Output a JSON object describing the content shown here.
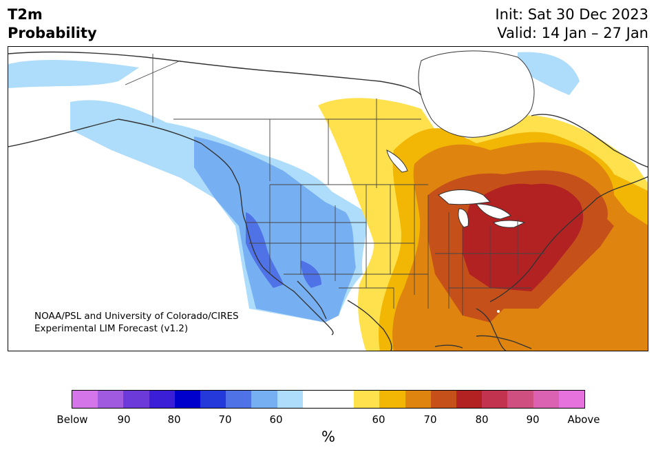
{
  "title": {
    "left_line1": "T2m",
    "left_line2": "Probability",
    "right_line1": "Init: Sat 30 Dec 2023",
    "right_line2": "Valid: 14 Jan – 27 Jan"
  },
  "credit": {
    "line1": "NOAA/PSL and University of Colorado/CIRES",
    "line2": "Experimental LIM Forecast (v1.2)"
  },
  "colorbar": {
    "unit": "%",
    "colors": [
      "#d575ea",
      "#9f5ae0",
      "#6b3ad9",
      "#3a1fd6",
      "#0000cc",
      "#2538d9",
      "#4f72e6",
      "#77b0f2",
      "#aedcfb",
      "#ffffff",
      "#ffffff",
      "#ffe14d",
      "#f2b705",
      "#df850f",
      "#c6501a",
      "#b22222",
      "#c23350",
      "#cf4f80",
      "#db62b3",
      "#e673dd"
    ],
    "tick_labels": [
      "Below",
      "90",
      "80",
      "70",
      "60",
      "60",
      "70",
      "80",
      "90",
      "Above"
    ]
  },
  "map_colors": {
    "land": "#ffffff",
    "ocean": "#ffffff",
    "coast": "#333333",
    "border": "#444444"
  }
}
